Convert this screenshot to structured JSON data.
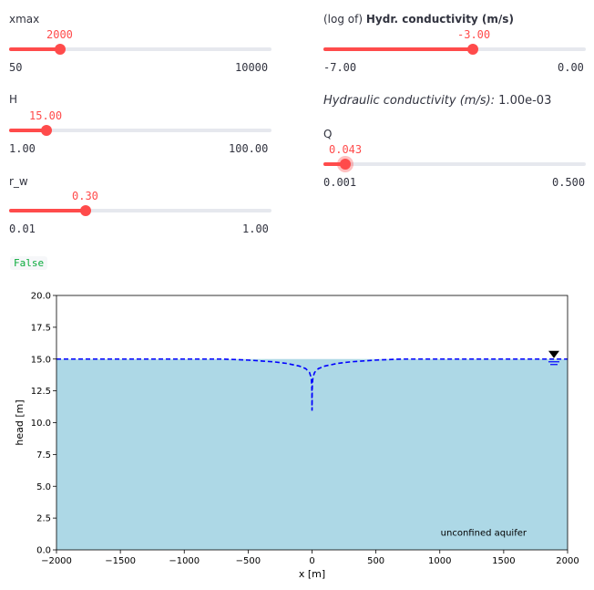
{
  "sliders": {
    "xmax": {
      "label": "xmax",
      "value": "2000",
      "min": "50",
      "max": "10000",
      "fraction": 0.196
    },
    "H": {
      "label": "H",
      "value": "15.00",
      "min": "1.00",
      "max": "100.00",
      "fraction": 0.141
    },
    "r_w": {
      "label": "r_w",
      "value": "0.30",
      "min": "0.01",
      "max": "1.00",
      "fraction": 0.293
    },
    "K": {
      "label_prefix": "(log of) ",
      "label_bold": "Hydr. conductivity (m/s)",
      "value": "-3.00",
      "min": "-7.00",
      "max": "0.00",
      "fraction": 0.571
    },
    "Q": {
      "label": "Q",
      "value": "0.043",
      "min": "0.001",
      "max": "0.500",
      "fraction": 0.084
    }
  },
  "info": {
    "italic": "Hydraulic conductivity (m/s):",
    "value": " 1.00e-03"
  },
  "code_output": "False",
  "chart_data": {
    "type": "line",
    "xlabel": "x [m]",
    "ylabel": "head [m]",
    "xlim": [
      -2000,
      2000
    ],
    "ylim": [
      0,
      20
    ],
    "x_ticks": [
      "−2000",
      "−1500",
      "−1000",
      "−500",
      "0",
      "500",
      "1000",
      "1500",
      "2000"
    ],
    "y_ticks": [
      "0.0",
      "2.5",
      "5.0",
      "7.5",
      "10.0",
      "12.5",
      "15.0",
      "17.5",
      "20.0"
    ],
    "annotation": "unconfined aquifer",
    "series": [
      {
        "values_x": [
          -2000,
          -1500,
          -1000,
          -700,
          -500,
          -300,
          -200,
          -100,
          -50,
          -20,
          -10,
          -5,
          -2,
          -1,
          -0.3,
          0,
          0.3,
          1,
          2,
          5,
          10,
          20,
          50,
          100,
          200,
          300,
          500,
          700,
          1000,
          1500,
          2000
        ],
        "values_y": [
          15.0,
          15.0,
          15.0,
          15.0,
          14.92,
          14.78,
          14.66,
          14.45,
          14.25,
          13.95,
          13.65,
          13.35,
          12.85,
          12.5,
          11.0,
          11.0,
          11.0,
          12.5,
          12.85,
          13.35,
          13.65,
          13.95,
          14.25,
          14.45,
          14.66,
          14.78,
          14.92,
          15.0,
          15.0,
          15.0,
          15.0
        ]
      }
    ],
    "colors": {
      "aquifer": "#add8e6",
      "head": "#0000ff"
    }
  }
}
